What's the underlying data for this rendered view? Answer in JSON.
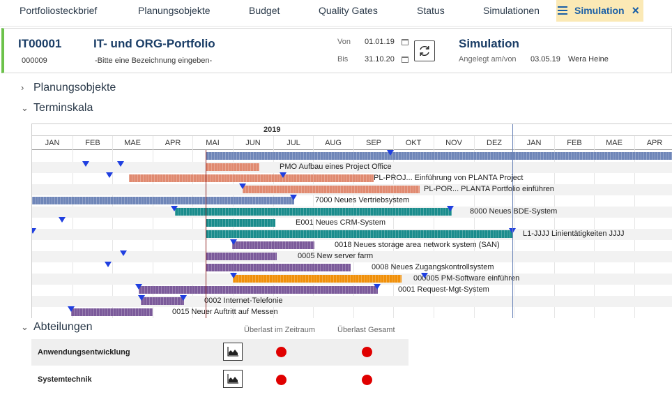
{
  "tabs": [
    {
      "label": "Portfoliosteckbrief"
    },
    {
      "label": "Planungsobjekte"
    },
    {
      "label": "Budget"
    },
    {
      "label": "Quality Gates"
    },
    {
      "label": "Status"
    },
    {
      "label": "Simulationen"
    },
    {
      "label": "Simulation"
    }
  ],
  "header": {
    "id": "IT00001",
    "sub_id": "000009",
    "title": "IT- und ORG-Portfolio",
    "description": "-Bitte eine Bezeichnung eingeben-",
    "von_label": "Von",
    "von_value": "01.01.19",
    "bis_label": "Bis",
    "bis_value": "31.10.20",
    "simulation_title": "Simulation",
    "angelegt_label": "Angelegt am/von",
    "angelegt_date": "03.05.19",
    "angelegt_user": "Wera Heine"
  },
  "sections": {
    "planungsobjekte": "Planungsobjekte",
    "terminskala": "Terminskala",
    "abteilungen": "Abteilungen"
  },
  "gantt": {
    "year": "2019",
    "months": [
      "JAN",
      "FEB",
      "MAE",
      "APR",
      "MAI",
      "JUN",
      "JUL",
      "AUG",
      "SEP",
      "OKT",
      "NOV",
      "DEZ",
      "JAN",
      "FEB",
      "MAE",
      "APR"
    ],
    "rows": [
      {
        "label": "",
        "color": "#6f86b8"
      },
      {
        "label": "PMO Aufbau eines Project Office",
        "color": "#e08a70"
      },
      {
        "label": "PL-PROJ... Einführung von PLANTA Project",
        "color": "#e08a70"
      },
      {
        "label": "PL-POR... PLANTA Portfolio einführen",
        "color": "#e08a70"
      },
      {
        "label": "7000 Neues Vertriebsystem",
        "color": "#6f86b8"
      },
      {
        "label": "8000 Neues BDE-System",
        "color": "#1a8c8c"
      },
      {
        "label": "E001 Neues CRM-System",
        "color": "#1a8c8c"
      },
      {
        "label": "L1-JJJJ Linientätigkeiten JJJJ",
        "color": "#1a8c8c"
      },
      {
        "label": "0018 Neues storage area network system (SAN)",
        "color": "#7b5a9a"
      },
      {
        "label": "0005 New server farm",
        "color": "#7b5a9a"
      },
      {
        "label": "0008 Neues Zugangskontrollsystem",
        "color": "#7b5a9a"
      },
      {
        "label": "000005 PM-Software einführen",
        "color": "#f0900a"
      },
      {
        "label": "0001 Request-Mgt-System",
        "color": "#7b5a9a"
      },
      {
        "label": "0002 Internet-Telefonie",
        "color": "#7b5a9a"
      },
      {
        "label": "0015 Neuer Auftritt auf Messen",
        "color": "#7b5a9a"
      }
    ]
  },
  "departments": {
    "col_period": "Überlast im Zeitraum",
    "col_total": "Überlast Gesamt",
    "rows": [
      {
        "name": "Anwendungsentwicklung"
      },
      {
        "name": "Systemtechnik"
      }
    ]
  },
  "icons": {
    "menu": "menu-icon",
    "close": "close-icon",
    "calendar": "calendar-icon",
    "refresh": "refresh-icon",
    "chevron_right": "chevron-right-icon",
    "chevron_down": "chevron-down-icon",
    "chart": "chart-icon",
    "overload_dot": "status-dot-icon"
  },
  "colors": {
    "accent": "#1a5fa6",
    "active_tab_bg": "#fbe9b5",
    "header_accent": "#6cc24a",
    "overload": "#e00000",
    "today_line": "#8b1e1e",
    "marker": "#1f3fe0"
  }
}
